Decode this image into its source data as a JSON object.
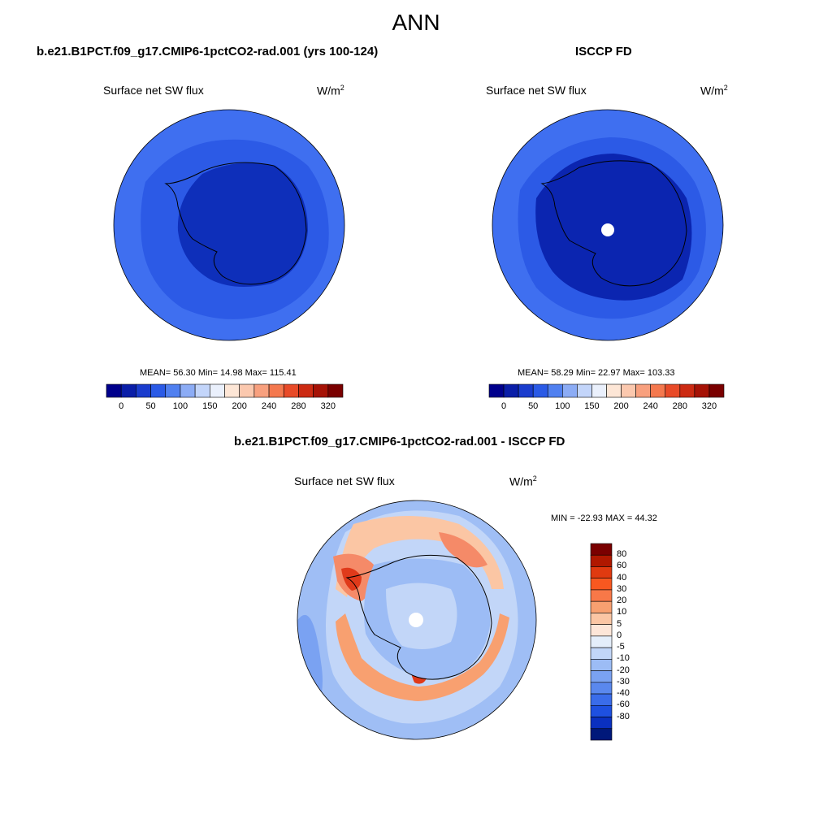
{
  "title": "ANN",
  "top_panels": [
    {
      "case_title": "b.e21.B1PCT.f09_g17.CMIP6-1pctCO2-rad.001 (yrs 100-124)",
      "variable": "Surface net SW flux",
      "units": "W/m",
      "units_exp": "2",
      "stats": "MEAN=  56.30  Min=  14.98  Max= 115.41",
      "has_pole_hole": false
    },
    {
      "case_title": "ISCCP FD",
      "variable": "Surface net SW flux",
      "units": "W/m",
      "units_exp": "2",
      "stats": "MEAN=  58.29  Min=  22.97  Max= 103.33",
      "has_pole_hole": true
    }
  ],
  "top_colorbar": {
    "colors": [
      "#00008c",
      "#0a1ea8",
      "#1a3ccd",
      "#2a5ae6",
      "#5080f0",
      "#8cacf5",
      "#c3d5fa",
      "#eaf0fc",
      "#fde6d6",
      "#fbc8ae",
      "#f8a07e",
      "#f4784e",
      "#e84a28",
      "#cc2a12",
      "#a61206",
      "#7a0000"
    ],
    "tick_labels": [
      "0",
      "50",
      "100",
      "150",
      "200",
      "240",
      "280",
      "320"
    ]
  },
  "diff_panel": {
    "case_title": "b.e21.B1PCT.f09_g17.CMIP6-1pctCO2-rad.001 - ISCCP FD",
    "variable": "Surface net SW flux",
    "units": "W/m",
    "units_exp": "2",
    "stats": "MIN = -22.93 MAX =  44.32"
  },
  "diff_colorbar": {
    "colors": [
      "#7a0000",
      "#b01800",
      "#e03a10",
      "#f85820",
      "#f87848",
      "#f8a070",
      "#fbc6a4",
      "#fde6d8",
      "#e4eefa",
      "#c2d6f8",
      "#9cbcf5",
      "#7aa2f2",
      "#5a88ee",
      "#3a6cea",
      "#1e50e0",
      "#0a30c0",
      "#00187a"
    ],
    "tick_labels": [
      "80",
      "60",
      "40",
      "30",
      "20",
      "10",
      "5",
      "0",
      "-5",
      "-10",
      "-20",
      "-30",
      "-40",
      "-60",
      "-80"
    ]
  },
  "colors": {
    "ocean_model": "#3f6ff0",
    "land_model": "#0e2fba",
    "ocean_obs": "#3f6ff0",
    "land_obs": "#0b25b0",
    "diff_base": "#9fbef5",
    "diff_warm": "#f58a68",
    "diff_strong": "#e03a1a"
  }
}
